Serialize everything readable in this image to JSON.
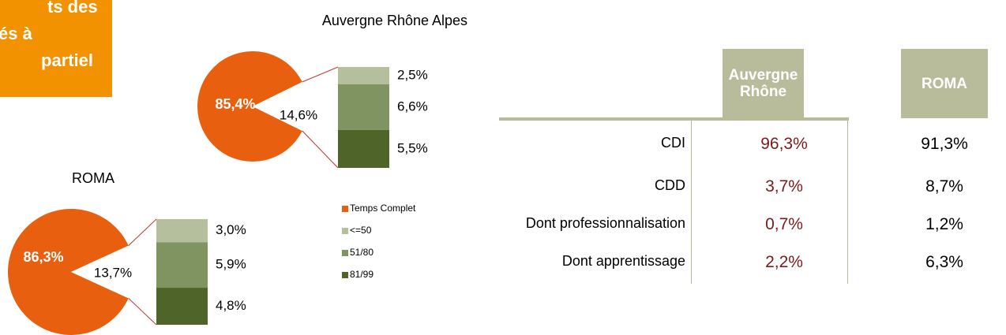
{
  "banner": {
    "lines": [
      "ts des",
      "és à",
      "partiel"
    ]
  },
  "chart_data": [
    {
      "type": "pie",
      "title": "Auvergne Rhône Alpes",
      "slices": {
        "values": [
          85.4,
          14.6
        ],
        "value_labels": [
          "85,4%",
          "14,6%"
        ]
      },
      "bar": {
        "values": [
          2.5,
          6.6,
          5.5
        ],
        "value_labels": [
          "2,5%",
          "6,6%",
          "5,5%"
        ]
      },
      "legend": {
        "names": [
          "Temps Complet",
          "<=50",
          "51/80",
          "81/99"
        ],
        "colors": [
          "#e8600f",
          "#b5bf9e",
          "#7f9460",
          "#4f6428"
        ]
      }
    },
    {
      "type": "pie",
      "title": "ROMA",
      "slices": {
        "values": [
          86.3,
          13.7
        ],
        "value_labels": [
          "86,3%",
          "13,7%"
        ]
      },
      "bar": {
        "values": [
          3.0,
          5.9,
          4.8
        ],
        "value_labels": [
          "3,0%",
          "5,9%",
          "4,8%"
        ]
      }
    }
  ],
  "table": {
    "headers": [
      "Auvergne Rhône",
      "ROMA"
    ],
    "rows": [
      [
        "CDI",
        "96,3%",
        "91,3%"
      ],
      [
        "CDD",
        "3,7%",
        "8,7%"
      ],
      [
        "Dont professionnalisation",
        "0,7%",
        "1,2%"
      ],
      [
        "Dont apprentissage",
        "2,2%",
        "6,3%"
      ]
    ]
  }
}
